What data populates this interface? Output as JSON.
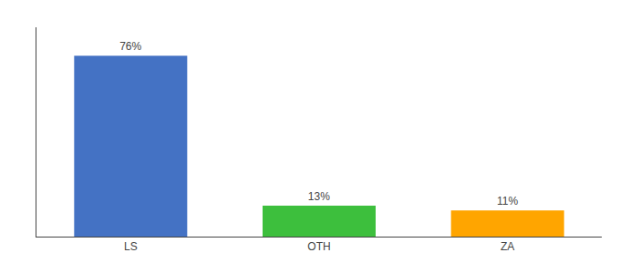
{
  "chart_data": {
    "type": "bar",
    "categories": [
      "LS",
      "OTH",
      "ZA"
    ],
    "values": [
      76,
      13,
      11
    ],
    "value_labels": [
      "76%",
      "13%",
      "11%"
    ],
    "colors": [
      "#4472C4",
      "#3DBF3D",
      "#FFA500"
    ],
    "data_labels": true,
    "ylim": [
      0,
      88
    ],
    "yticks": [],
    "tick_labels": "x",
    "grid": false
  }
}
